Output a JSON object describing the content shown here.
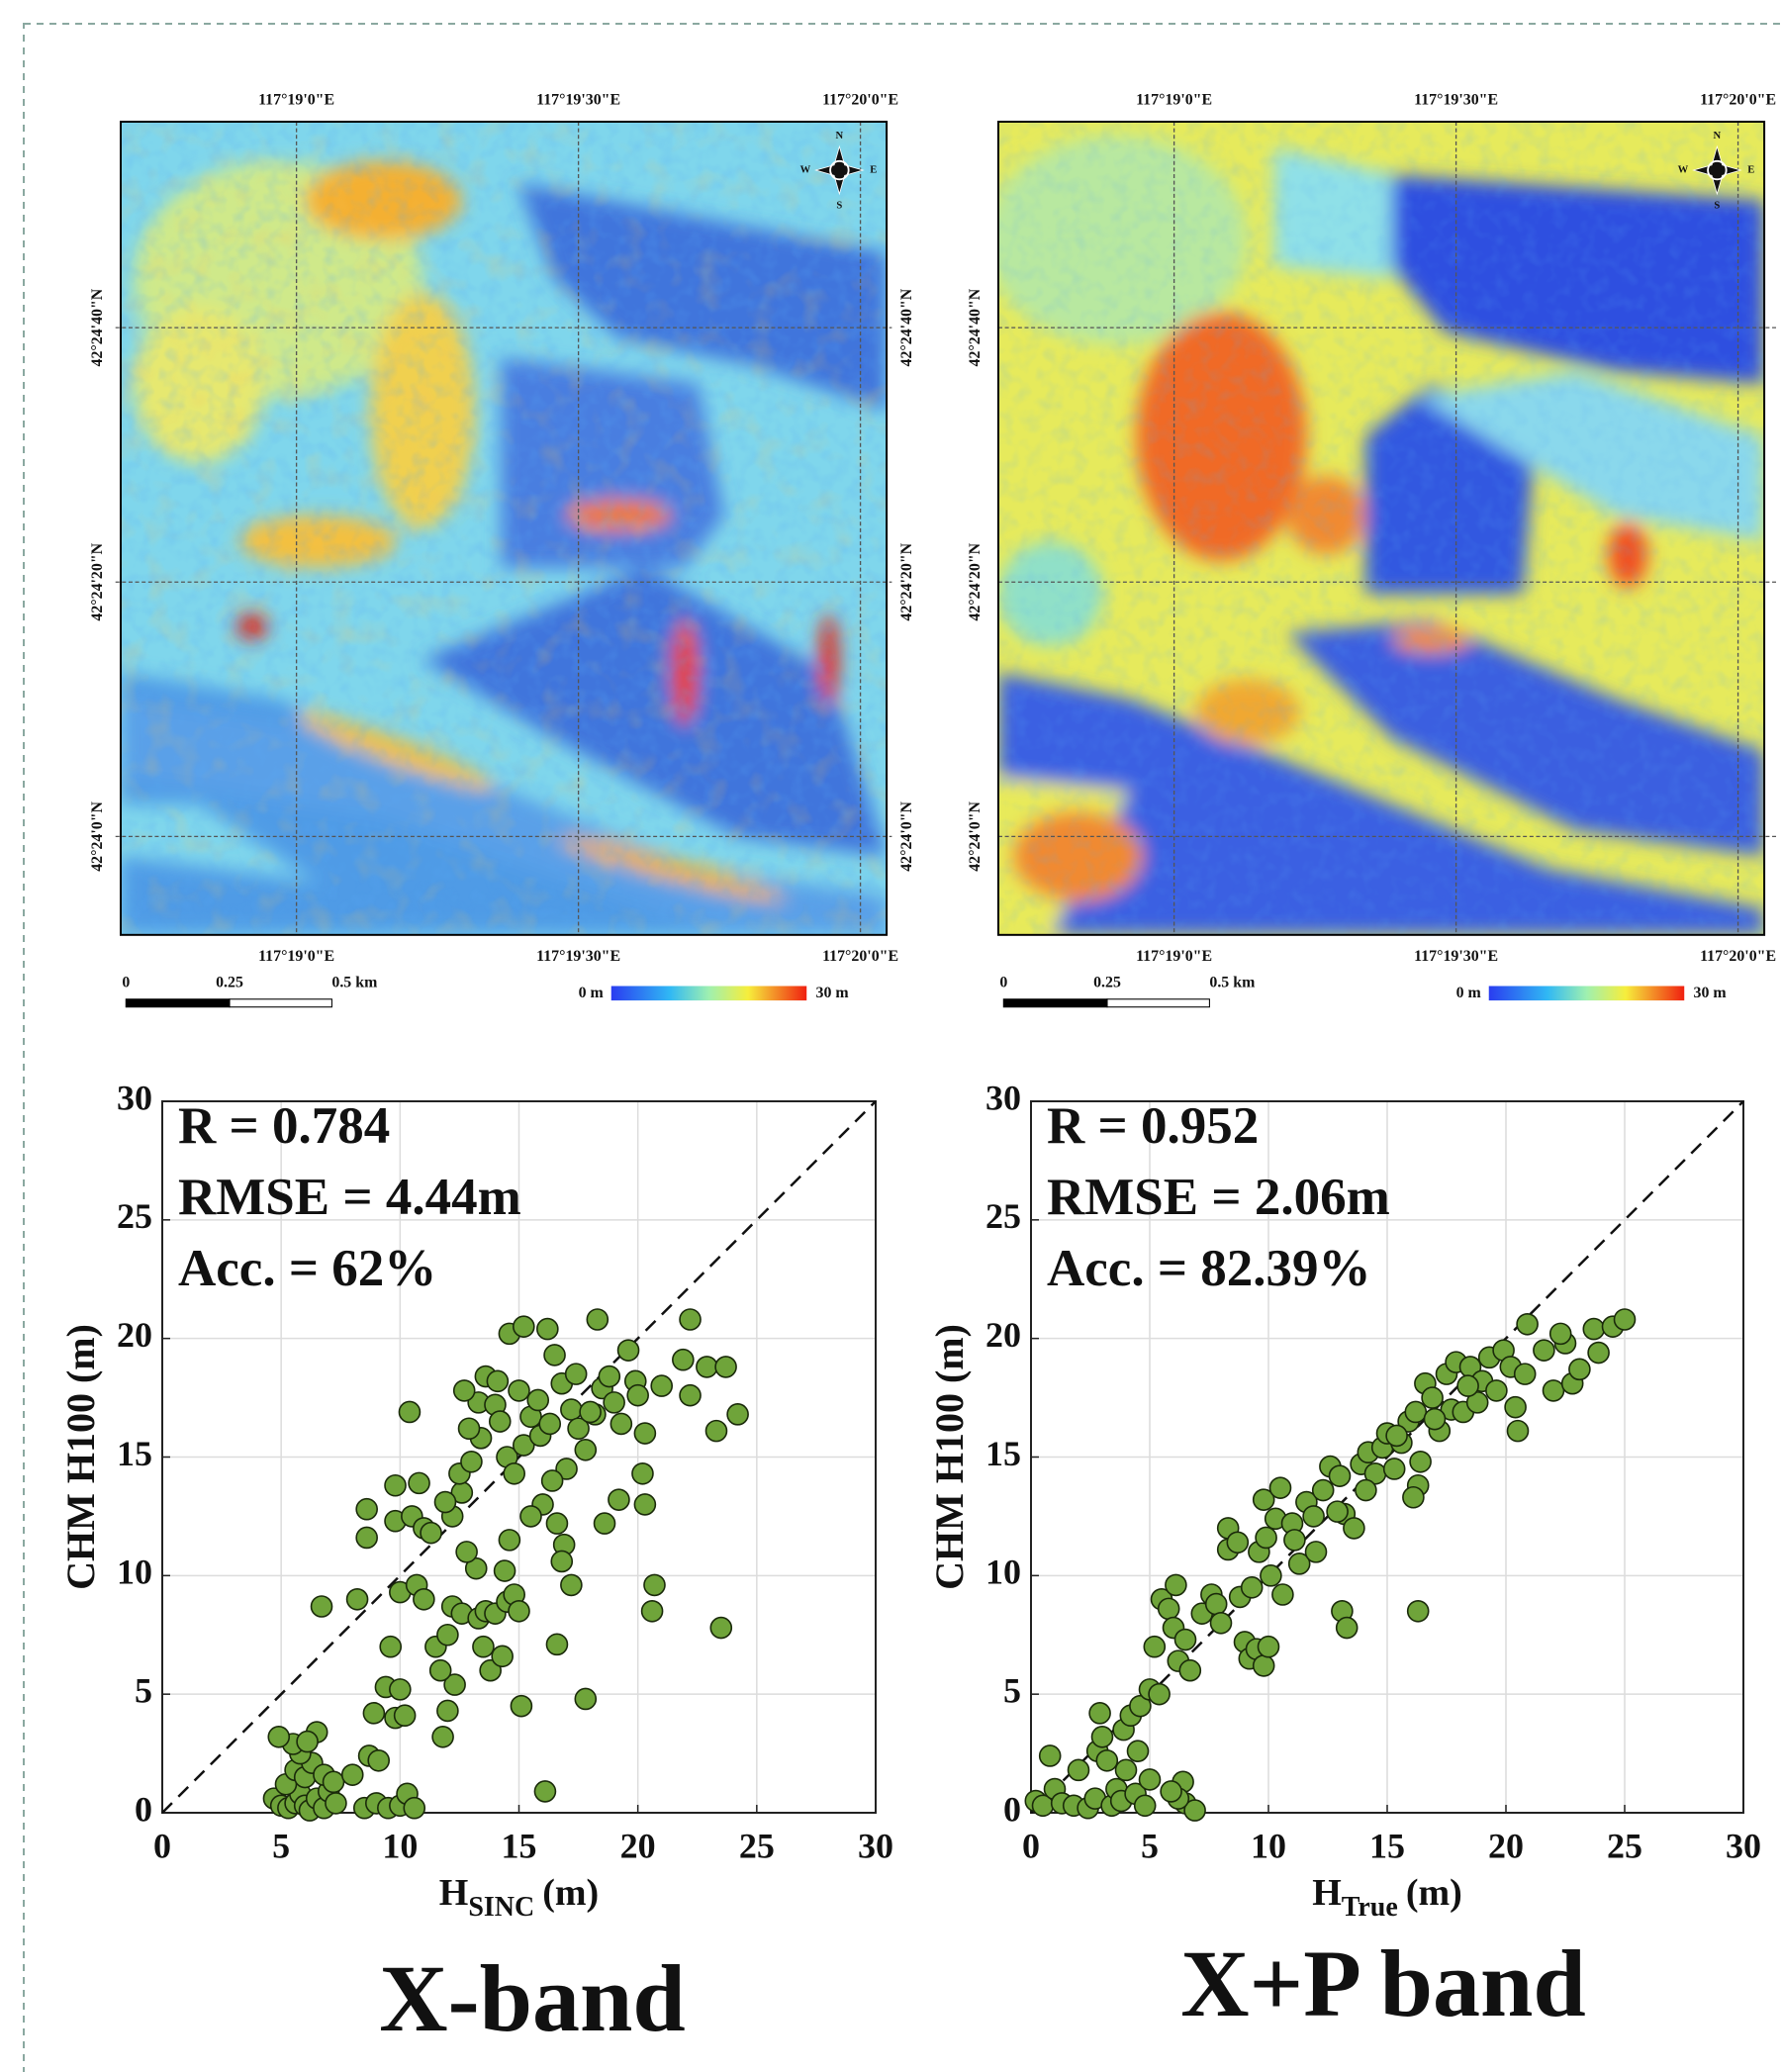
{
  "chart_data": [
    {
      "type": "scatter",
      "title": "X-band",
      "xlabel": "H",
      "xlabel_sub": "SINC",
      "xlabel_unit": "(m)",
      "ylabel": "CHM H100 (m)",
      "annotations": [
        "R = 0.784",
        "RMSE = 4.44m",
        "Acc. = 62%"
      ],
      "color": "#6fa43a",
      "xlim": [
        0,
        30
      ],
      "ylim": [
        0,
        30
      ],
      "xticks": [
        0,
        5,
        10,
        15,
        20,
        25,
        30
      ],
      "yticks": [
        0,
        5,
        10,
        15,
        20,
        25,
        30
      ],
      "grid": true,
      "x": [
        4.7,
        5,
        5.3,
        5.6,
        5.8,
        6,
        6.2,
        6.5,
        6.8,
        7,
        7.3,
        5.2,
        5.6,
        6,
        6.3,
        5.8,
        5.5,
        4.9,
        6.5,
        6.1,
        6.8,
        7.2,
        8,
        8.5,
        9,
        9.5,
        10,
        10.3,
        10.6,
        8.7,
        9.1,
        8.9,
        9.4,
        9.8,
        10.2,
        10,
        9.6,
        6.7,
        8.2,
        10,
        10.7,
        11,
        8.6,
        8.6,
        9.8,
        9.8,
        10.5,
        10.8,
        11,
        11.3,
        10.4,
        11.8,
        12,
        12.3,
        11.7,
        11.5,
        12,
        12.2,
        12.6,
        13.3,
        13.5,
        13.8,
        14.3,
        13.6,
        14,
        14.5,
        14.8,
        15,
        15.1,
        14.6,
        14.4,
        13.2,
        12.8,
        12.2,
        12.6,
        11.9,
        12.5,
        13,
        13.4,
        12.9,
        13.3,
        12.7,
        13.6,
        14,
        14.2,
        14.5,
        14.8,
        15.2,
        15.5,
        15.8,
        14.6,
        15.2,
        16.2,
        16.5,
        16.8,
        17.2,
        17.5,
        17.8,
        17,
        16.4,
        16,
        16.6,
        16.9,
        16.8,
        17.2,
        16.6,
        17.8,
        16.1,
        18.2,
        18.5,
        18.3,
        18.8,
        19,
        19.3,
        19.6,
        19.9,
        20,
        20.3,
        20.2,
        19.2,
        18.6,
        20.3,
        20.6,
        20.7,
        21,
        21.9,
        22.2,
        22.2,
        22.9,
        23.3,
        23.7,
        24.2,
        23.5,
        15.5,
        15.9,
        17.4,
        15,
        14.1,
        16.3,
        18
      ],
      "values": [
        0.6,
        0.3,
        0.2,
        0.4,
        0.8,
        0.3,
        0.1,
        0.6,
        0.2,
        0.9,
        0.4,
        1.2,
        1.8,
        1.5,
        2.1,
        2.5,
        2.9,
        3.2,
        3.4,
        3,
        1.6,
        1.3,
        1.6,
        0.2,
        0.4,
        0.2,
        0.3,
        0.8,
        0.2,
        2.4,
        2.2,
        4.2,
        5.3,
        4,
        4.1,
        5.2,
        7,
        8.7,
        9,
        9.3,
        9.6,
        9,
        11.6,
        12.8,
        12.3,
        13.8,
        12.5,
        13.9,
        12,
        11.8,
        16.9,
        3.2,
        4.3,
        5.4,
        6,
        7,
        7.5,
        8.7,
        8.4,
        8.2,
        7,
        6,
        6.6,
        8.5,
        8.4,
        8.9,
        9.2,
        8.5,
        4.5,
        11.5,
        10.2,
        10.3,
        11,
        12.5,
        13.5,
        13.1,
        14.3,
        14.8,
        15.8,
        16.2,
        17.3,
        17.8,
        18.4,
        17.2,
        16.5,
        15,
        14.3,
        15.5,
        16.7,
        17.4,
        20.2,
        20.5,
        20.4,
        19.3,
        18.1,
        17,
        16.2,
        15.3,
        14.5,
        14,
        13,
        12.2,
        11.3,
        10.6,
        9.6,
        7.1,
        4.8,
        0.9,
        16.8,
        17.9,
        20.8,
        18.4,
        17.3,
        16.4,
        19.5,
        18.2,
        17.6,
        16,
        14.3,
        13.2,
        12.2,
        13,
        8.5,
        9.6,
        18,
        19.1,
        20.8,
        17.6,
        18.8,
        16.1,
        18.8,
        16.8,
        7.8,
        12.5,
        15.9,
        18.5,
        17.8,
        18.2,
        16.4,
        16.9
      ]
    },
    {
      "type": "scatter",
      "title": "X+P band",
      "xlabel": "H",
      "xlabel_sub": "True",
      "xlabel_unit": "(m)",
      "ylabel": "CHM H100 (m)",
      "annotations": [
        "R = 0.952",
        "RMSE = 2.06m",
        "Acc. = 82.39%"
      ],
      "color": "#6fa43a",
      "xlim": [
        0,
        30
      ],
      "ylim": [
        0,
        30
      ],
      "xticks": [
        0,
        5,
        10,
        15,
        20,
        25,
        30
      ],
      "yticks": [
        0,
        5,
        10,
        15,
        20,
        25,
        30
      ],
      "grid": true,
      "x": [
        0.2,
        0.5,
        0.8,
        1,
        1.3,
        1.8,
        2,
        2.4,
        2.7,
        2.8,
        3,
        2.9,
        3.2,
        3.4,
        3.6,
        3.8,
        4,
        3.9,
        4.2,
        4.5,
        4.4,
        4.8,
        5,
        4.6,
        5,
        5.4,
        5.2,
        5.5,
        5.8,
        6,
        6.1,
        6.2,
        6.5,
        6.7,
        6.4,
        6.5,
        6.9,
        6.2,
        5.9,
        7.2,
        7.6,
        7.8,
        8,
        8.3,
        8.3,
        8.7,
        8.8,
        9,
        9.2,
        9.5,
        9.8,
        10,
        9.3,
        9.6,
        9.9,
        9.8,
        10.3,
        10.5,
        10.1,
        10.6,
        11,
        11.3,
        11.6,
        11.9,
        12,
        12.3,
        12.6,
        13,
        13.2,
        13.1,
        13.3,
        13.6,
        13.9,
        14.2,
        14.5,
        14.8,
        15,
        15.3,
        15.6,
        15.9,
        16.2,
        16.4,
        16.3,
        16.1,
        16.3,
        16.6,
        16.9,
        17.2,
        17.5,
        17.7,
        17.9,
        18.2,
        18.5,
        18.8,
        19,
        19.3,
        19.6,
        19.9,
        20.2,
        20.4,
        20.5,
        20.9,
        20.8,
        21.6,
        22,
        22.5,
        22.3,
        22.8,
        23.1,
        23.7,
        23.9,
        24.5,
        25,
        14.1,
        12.9,
        11.1,
        18.4,
        17,
        15.4
      ],
      "values": [
        0.5,
        0.3,
        2.4,
        1,
        0.4,
        0.3,
        1.8,
        0.2,
        0.6,
        2.6,
        3.2,
        4.2,
        2.2,
        0.3,
        1,
        0.5,
        1.8,
        3.5,
        4.1,
        2.6,
        0.8,
        0.3,
        1.4,
        4.5,
        5.2,
        5,
        7,
        9,
        8.6,
        7.8,
        9.6,
        6.4,
        7.3,
        6,
        1.3,
        0.4,
        0.1,
        0.6,
        0.9,
        8.4,
        9.2,
        8.8,
        8,
        11.1,
        12,
        11.4,
        9.1,
        7.2,
        6.5,
        6.9,
        6.2,
        7,
        9.5,
        11,
        11.6,
        13.2,
        12.4,
        13.7,
        10,
        9.2,
        12.2,
        10.5,
        13.1,
        12.5,
        11,
        13.6,
        14.6,
        14.2,
        12.6,
        8.5,
        7.8,
        12,
        14.7,
        15.2,
        14.3,
        15.4,
        16,
        14.5,
        15.6,
        16.5,
        16.9,
        14.8,
        13.8,
        13.3,
        8.5,
        18.1,
        17.5,
        16.1,
        18.5,
        17,
        19,
        16.9,
        18.8,
        17.3,
        18.2,
        19.2,
        17.8,
        19.5,
        18.8,
        17.1,
        16.1,
        20.6,
        18.5,
        19.5,
        17.8,
        19.8,
        20.2,
        18.1,
        18.7,
        20.4,
        19.4,
        20.5,
        20.8,
        13.6,
        12.7,
        11.5,
        18,
        16.6,
        15.9
      ]
    }
  ],
  "maps": [
    {
      "lon_ticks": [
        "117°19'0\"E",
        "117°19'30\"E",
        "117°20'0\"E"
      ],
      "lat_ticks": [
        "42°24'40\"N",
        "42°24'20\"N",
        "42°24'0\"N"
      ],
      "scale_labels": [
        "0",
        "0.25",
        "0.5 km"
      ],
      "colorbar_labels": [
        "0 m",
        "30 m"
      ],
      "compass": [
        "N",
        "S",
        "W",
        "E"
      ]
    },
    {
      "lon_ticks": [
        "117°19'0\"E",
        "117°19'30\"E",
        "117°20'0\"E"
      ],
      "lat_ticks": [
        "42°24'40\"N",
        "42°24'20\"N",
        "42°24'0\"N"
      ],
      "scale_labels": [
        "0",
        "0.25",
        "0.5 km"
      ],
      "colorbar_labels": [
        "0 m",
        "30 m"
      ],
      "compass": [
        "N",
        "S",
        "W",
        "E"
      ]
    }
  ]
}
